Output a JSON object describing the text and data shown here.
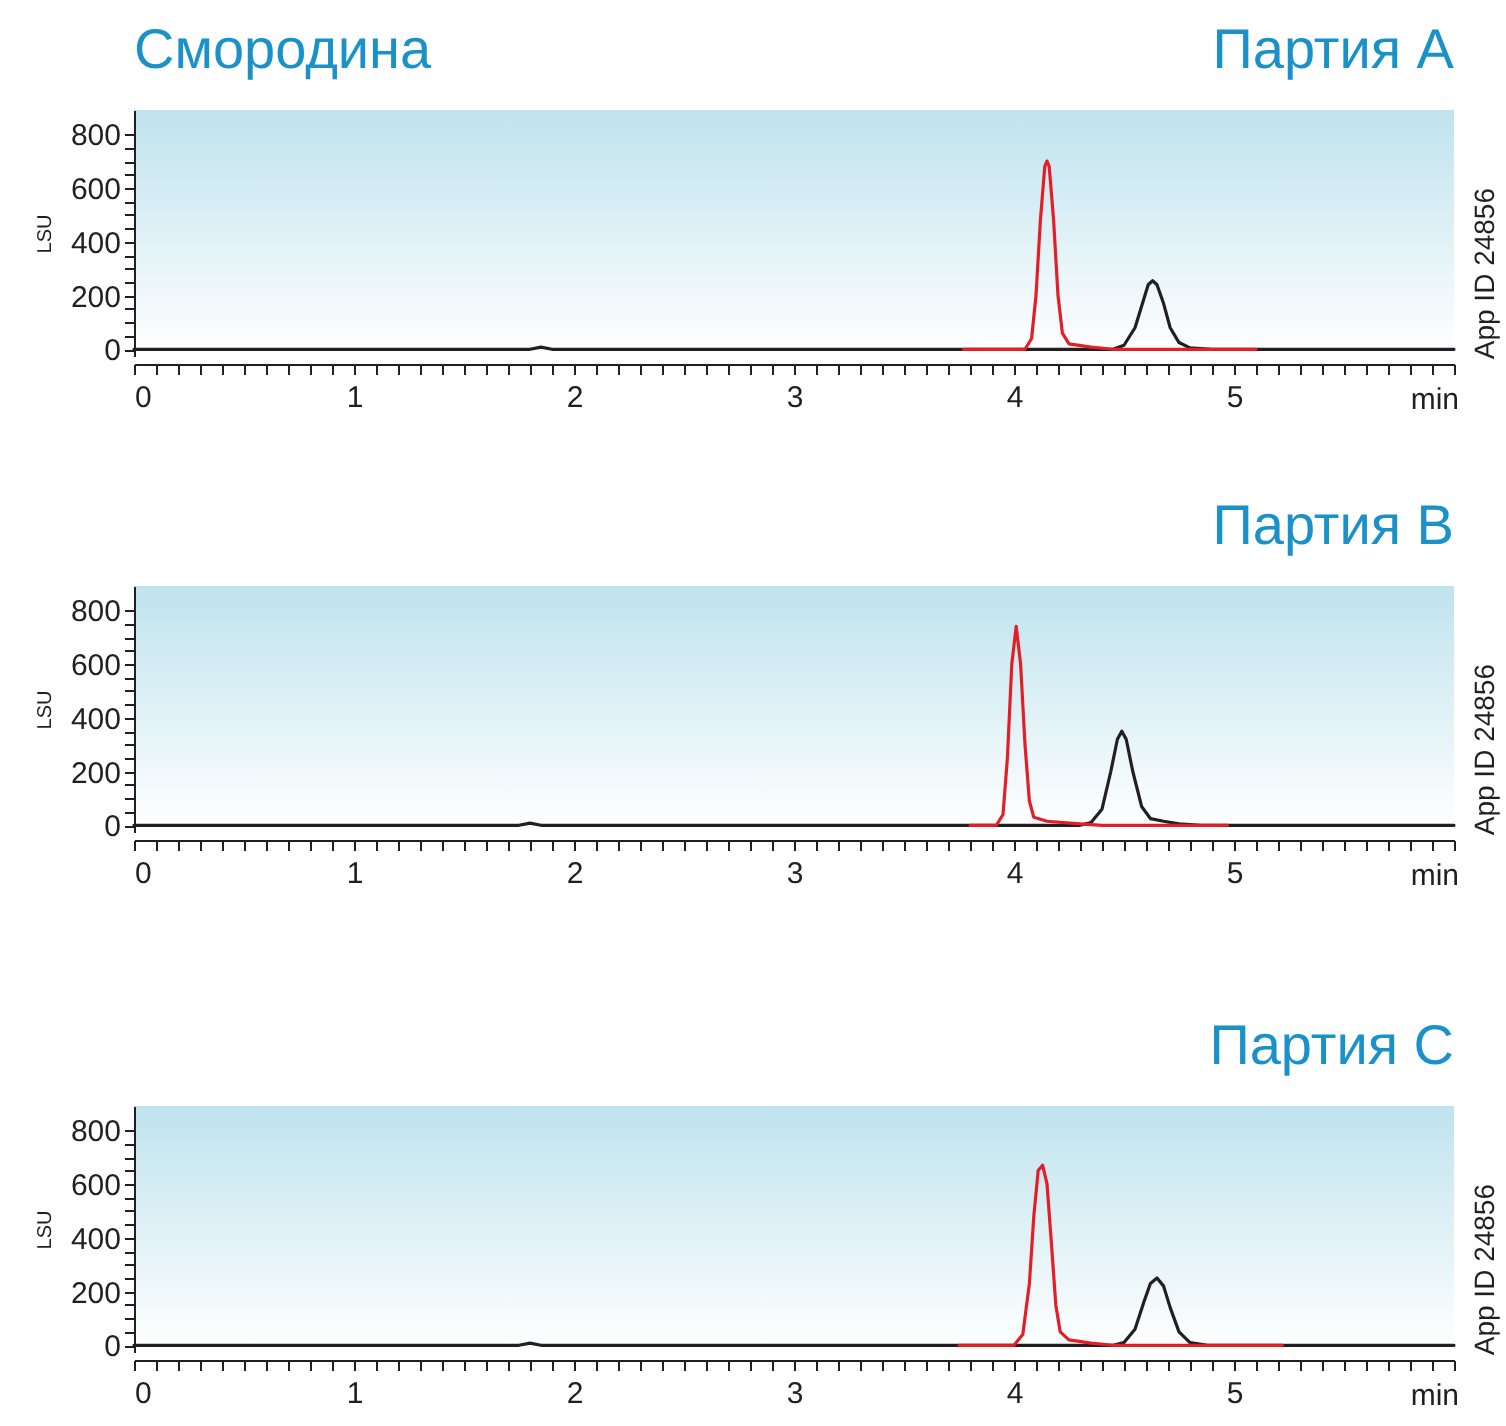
{
  "chart_data": [
    {
      "type": "line",
      "title": "Смородина",
      "subtitle": "Партия A",
      "xlabel": "min",
      "ylabel": "LSU",
      "annotations": [
        "App ID 24856"
      ],
      "xlim": [
        0,
        6
      ],
      "ylim": [
        -25,
        890
      ],
      "xticks": [
        0,
        {
          "value": 0.1,
          "label": null
        },
        {
          "value": 0.2,
          "label": null
        },
        {
          "value": 0.3,
          "label": null
        },
        {
          "value": 0.4,
          "label": null
        },
        {
          "value": 0.5,
          "label": null
        },
        {
          "value": 0.6,
          "label": null
        },
        {
          "value": 0.7,
          "label": null
        },
        {
          "value": 0.8,
          "label": null
        },
        {
          "value": 0.9,
          "label": null
        },
        1,
        {
          "value": 1.1,
          "label": null
        },
        {
          "value": 1.2,
          "label": null
        },
        {
          "value": 1.3,
          "label": null
        },
        {
          "value": 1.4,
          "label": null
        },
        {
          "value": 1.5,
          "label": null
        },
        {
          "value": 1.6,
          "label": null
        },
        {
          "value": 1.7,
          "label": null
        },
        {
          "value": 1.8,
          "label": null
        },
        {
          "value": 1.9,
          "label": null
        },
        2,
        {
          "value": 2.1,
          "label": null
        },
        {
          "value": 2.2,
          "label": null
        },
        {
          "value": 2.3,
          "label": null
        },
        {
          "value": 2.4,
          "label": null
        },
        {
          "value": 2.5,
          "label": null
        },
        {
          "value": 2.6,
          "label": null
        },
        {
          "value": 2.7,
          "label": null
        },
        {
          "value": 2.8,
          "label": null
        },
        {
          "value": 2.9,
          "label": null
        },
        3,
        {
          "value": 3.1,
          "label": null
        },
        {
          "value": 3.2,
          "label": null
        },
        {
          "value": 3.3,
          "label": null
        },
        {
          "value": 3.4,
          "label": null
        },
        {
          "value": 3.5,
          "label": null
        },
        {
          "value": 3.6,
          "label": null
        },
        {
          "value": 3.7,
          "label": null
        },
        {
          "value": 3.8,
          "label": null
        },
        {
          "value": 3.9,
          "label": null
        },
        4,
        {
          "value": 4.1,
          "label": null
        },
        {
          "value": 4.2,
          "label": null
        },
        {
          "value": 4.3,
          "label": null
        },
        {
          "value": 4.4,
          "label": null
        },
        {
          "value": 4.5,
          "label": null
        },
        {
          "value": 4.6,
          "label": null
        },
        {
          "value": 4.7,
          "label": null
        },
        {
          "value": 4.8,
          "label": null
        },
        {
          "value": 4.9,
          "label": null
        },
        5,
        {
          "value": 5.1,
          "label": null
        },
        {
          "value": 5.2,
          "label": null
        },
        {
          "value": 5.3,
          "label": null
        },
        {
          "value": 5.4,
          "label": null
        },
        {
          "value": 5.5,
          "label": null
        },
        {
          "value": 5.6,
          "label": null
        },
        {
          "value": 5.7,
          "label": null
        },
        {
          "value": 5.8,
          "label": null
        },
        {
          "value": 5.9,
          "label": null
        },
        {
          "value": 6,
          "label": null
        }
      ],
      "yticks": [
        0,
        {
          "value": 50,
          "label": null
        },
        {
          "value": 100,
          "label": null
        },
        {
          "value": 150,
          "label": null
        },
        200,
        {
          "value": 250,
          "label": null
        },
        {
          "value": 300,
          "label": null
        },
        {
          "value": 350,
          "label": null
        },
        400,
        {
          "value": 450,
          "label": null
        },
        {
          "value": 500,
          "label": null
        },
        {
          "value": 550,
          "label": null
        },
        600,
        {
          "value": 650,
          "label": null
        },
        {
          "value": 700,
          "label": null
        },
        {
          "value": 750,
          "label": null
        },
        800
      ],
      "series": [
        {
          "color": "#231f20",
          "x": [
            0,
            1.8,
            1.85,
            1.9,
            4.45,
            4.5,
            4.55,
            4.58,
            4.61,
            4.63,
            4.65,
            4.68,
            4.71,
            4.75,
            4.8,
            4.9,
            6
          ],
          "values": [
            0,
            0,
            8,
            0,
            0,
            15,
            80,
            160,
            240,
            255,
            240,
            170,
            80,
            25,
            5,
            0,
            0
          ]
        },
        {
          "color": "#e41e26",
          "x": [
            3.77,
            4.05,
            4.08,
            4.1,
            4.12,
            4.14,
            4.15,
            4.16,
            4.18,
            4.2,
            4.22,
            4.25,
            4.35,
            4.45,
            5.1
          ],
          "values": [
            0,
            0,
            40,
            200,
            480,
            680,
            700,
            680,
            480,
            200,
            60,
            20,
            8,
            0,
            0
          ]
        }
      ]
    },
    {
      "type": "line",
      "subtitle": "Партия B",
      "xlabel": "min",
      "ylabel": "LSU",
      "annotations": [
        "App ID 24856"
      ],
      "xlim": [
        0,
        6
      ],
      "ylim": [
        -25,
        890
      ],
      "xticks": [
        0,
        {
          "value": 0.1,
          "label": null
        },
        {
          "value": 0.2,
          "label": null
        },
        {
          "value": 0.3,
          "label": null
        },
        {
          "value": 0.4,
          "label": null
        },
        {
          "value": 0.5,
          "label": null
        },
        {
          "value": 0.6,
          "label": null
        },
        {
          "value": 0.7,
          "label": null
        },
        {
          "value": 0.8,
          "label": null
        },
        {
          "value": 0.9,
          "label": null
        },
        1,
        {
          "value": 1.1,
          "label": null
        },
        {
          "value": 1.2,
          "label": null
        },
        {
          "value": 1.3,
          "label": null
        },
        {
          "value": 1.4,
          "label": null
        },
        {
          "value": 1.5,
          "label": null
        },
        {
          "value": 1.6,
          "label": null
        },
        {
          "value": 1.7,
          "label": null
        },
        {
          "value": 1.8,
          "label": null
        },
        {
          "value": 1.9,
          "label": null
        },
        2,
        {
          "value": 2.1,
          "label": null
        },
        {
          "value": 2.2,
          "label": null
        },
        {
          "value": 2.3,
          "label": null
        },
        {
          "value": 2.4,
          "label": null
        },
        {
          "value": 2.5,
          "label": null
        },
        {
          "value": 2.6,
          "label": null
        },
        {
          "value": 2.7,
          "label": null
        },
        {
          "value": 2.8,
          "label": null
        },
        {
          "value": 2.9,
          "label": null
        },
        3,
        {
          "value": 3.1,
          "label": null
        },
        {
          "value": 3.2,
          "label": null
        },
        {
          "value": 3.3,
          "label": null
        },
        {
          "value": 3.4,
          "label": null
        },
        {
          "value": 3.5,
          "label": null
        },
        {
          "value": 3.6,
          "label": null
        },
        {
          "value": 3.7,
          "label": null
        },
        {
          "value": 3.8,
          "label": null
        },
        {
          "value": 3.9,
          "label": null
        },
        4,
        {
          "value": 4.1,
          "label": null
        },
        {
          "value": 4.2,
          "label": null
        },
        {
          "value": 4.3,
          "label": null
        },
        {
          "value": 4.4,
          "label": null
        },
        {
          "value": 4.5,
          "label": null
        },
        {
          "value": 4.6,
          "label": null
        },
        {
          "value": 4.7,
          "label": null
        },
        {
          "value": 4.8,
          "label": null
        },
        {
          "value": 4.9,
          "label": null
        },
        5,
        {
          "value": 5.1,
          "label": null
        },
        {
          "value": 5.2,
          "label": null
        },
        {
          "value": 5.3,
          "label": null
        },
        {
          "value": 5.4,
          "label": null
        },
        {
          "value": 5.5,
          "label": null
        },
        {
          "value": 5.6,
          "label": null
        },
        {
          "value": 5.7,
          "label": null
        },
        {
          "value": 5.8,
          "label": null
        },
        {
          "value": 5.9,
          "label": null
        },
        {
          "value": 6,
          "label": null
        }
      ],
      "yticks": [
        0,
        {
          "value": 50,
          "label": null
        },
        {
          "value": 100,
          "label": null
        },
        {
          "value": 150,
          "label": null
        },
        200,
        {
          "value": 250,
          "label": null
        },
        {
          "value": 300,
          "label": null
        },
        {
          "value": 350,
          "label": null
        },
        400,
        {
          "value": 450,
          "label": null
        },
        {
          "value": 500,
          "label": null
        },
        {
          "value": 550,
          "label": null
        },
        600,
        {
          "value": 650,
          "label": null
        },
        {
          "value": 700,
          "label": null
        },
        {
          "value": 750,
          "label": null
        },
        800
      ],
      "series": [
        {
          "color": "#231f20",
          "x": [
            0,
            1.75,
            1.8,
            1.85,
            4.3,
            4.35,
            4.4,
            4.44,
            4.47,
            4.49,
            4.51,
            4.54,
            4.58,
            4.62,
            4.68,
            4.75,
            4.85,
            6
          ],
          "values": [
            0,
            0,
            8,
            0,
            0,
            10,
            60,
            200,
            320,
            350,
            320,
            200,
            70,
            25,
            15,
            5,
            0,
            0
          ]
        },
        {
          "color": "#e41e26",
          "x": [
            3.8,
            3.92,
            3.95,
            3.97,
            3.99,
            4.01,
            4.03,
            4.05,
            4.07,
            4.09,
            4.15,
            4.3,
            4.4,
            4.97
          ],
          "values": [
            0,
            0,
            40,
            250,
            600,
            740,
            600,
            300,
            90,
            30,
            15,
            5,
            0,
            0
          ]
        }
      ]
    },
    {
      "type": "line",
      "subtitle": "Партия C",
      "xlabel": "min",
      "ylabel": "LSU",
      "annotations": [
        "App ID 24856"
      ],
      "xlim": [
        0,
        6
      ],
      "ylim": [
        -25,
        890
      ],
      "xticks": [
        0,
        {
          "value": 0.1,
          "label": null
        },
        {
          "value": 0.2,
          "label": null
        },
        {
          "value": 0.3,
          "label": null
        },
        {
          "value": 0.4,
          "label": null
        },
        {
          "value": 0.5,
          "label": null
        },
        {
          "value": 0.6,
          "label": null
        },
        {
          "value": 0.7,
          "label": null
        },
        {
          "value": 0.8,
          "label": null
        },
        {
          "value": 0.9,
          "label": null
        },
        1,
        {
          "value": 1.1,
          "label": null
        },
        {
          "value": 1.2,
          "label": null
        },
        {
          "value": 1.3,
          "label": null
        },
        {
          "value": 1.4,
          "label": null
        },
        {
          "value": 1.5,
          "label": null
        },
        {
          "value": 1.6,
          "label": null
        },
        {
          "value": 1.7,
          "label": null
        },
        {
          "value": 1.8,
          "label": null
        },
        {
          "value": 1.9,
          "label": null
        },
        2,
        {
          "value": 2.1,
          "label": null
        },
        {
          "value": 2.2,
          "label": null
        },
        {
          "value": 2.3,
          "label": null
        },
        {
          "value": 2.4,
          "label": null
        },
        {
          "value": 2.5,
          "label": null
        },
        {
          "value": 2.6,
          "label": null
        },
        {
          "value": 2.7,
          "label": null
        },
        {
          "value": 2.8,
          "label": null
        },
        {
          "value": 2.9,
          "label": null
        },
        3,
        {
          "value": 3.1,
          "label": null
        },
        {
          "value": 3.2,
          "label": null
        },
        {
          "value": 3.3,
          "label": null
        },
        {
          "value": 3.4,
          "label": null
        },
        {
          "value": 3.5,
          "label": null
        },
        {
          "value": 3.6,
          "label": null
        },
        {
          "value": 3.7,
          "label": null
        },
        {
          "value": 3.8,
          "label": null
        },
        {
          "value": 3.9,
          "label": null
        },
        4,
        {
          "value": 4.1,
          "label": null
        },
        {
          "value": 4.2,
          "label": null
        },
        {
          "value": 4.3,
          "label": null
        },
        {
          "value": 4.4,
          "label": null
        },
        {
          "value": 4.5,
          "label": null
        },
        {
          "value": 4.6,
          "label": null
        },
        {
          "value": 4.7,
          "label": null
        },
        {
          "value": 4.8,
          "label": null
        },
        {
          "value": 4.9,
          "label": null
        },
        5,
        {
          "value": 5.1,
          "label": null
        },
        {
          "value": 5.2,
          "label": null
        },
        {
          "value": 5.3,
          "label": null
        },
        {
          "value": 5.4,
          "label": null
        },
        {
          "value": 5.5,
          "label": null
        },
        {
          "value": 5.6,
          "label": null
        },
        {
          "value": 5.7,
          "label": null
        },
        {
          "value": 5.8,
          "label": null
        },
        {
          "value": 5.9,
          "label": null
        },
        {
          "value": 6,
          "label": null
        }
      ],
      "yticks": [
        0,
        {
          "value": 50,
          "label": null
        },
        {
          "value": 100,
          "label": null
        },
        {
          "value": 150,
          "label": null
        },
        200,
        {
          "value": 250,
          "label": null
        },
        {
          "value": 300,
          "label": null
        },
        {
          "value": 350,
          "label": null
        },
        400,
        {
          "value": 450,
          "label": null
        },
        {
          "value": 500,
          "label": null
        },
        {
          "value": 550,
          "label": null
        },
        600,
        {
          "value": 650,
          "label": null
        },
        {
          "value": 700,
          "label": null
        },
        {
          "value": 750,
          "label": null
        },
        800
      ],
      "series": [
        {
          "color": "#231f20",
          "x": [
            0,
            1.75,
            1.8,
            1.85,
            4.45,
            4.5,
            4.55,
            4.59,
            4.62,
            4.65,
            4.68,
            4.71,
            4.75,
            4.8,
            4.88,
            6
          ],
          "values": [
            0,
            0,
            8,
            0,
            0,
            10,
            60,
            160,
            230,
            250,
            220,
            140,
            50,
            10,
            0,
            0
          ]
        },
        {
          "color": "#e41e26",
          "x": [
            3.75,
            4.0,
            4.04,
            4.07,
            4.09,
            4.11,
            4.13,
            4.15,
            4.17,
            4.19,
            4.21,
            4.25,
            4.35,
            4.45,
            5.22
          ],
          "values": [
            0,
            0,
            40,
            230,
            480,
            650,
            670,
            600,
            380,
            150,
            50,
            20,
            8,
            0,
            0
          ]
        }
      ]
    }
  ]
}
